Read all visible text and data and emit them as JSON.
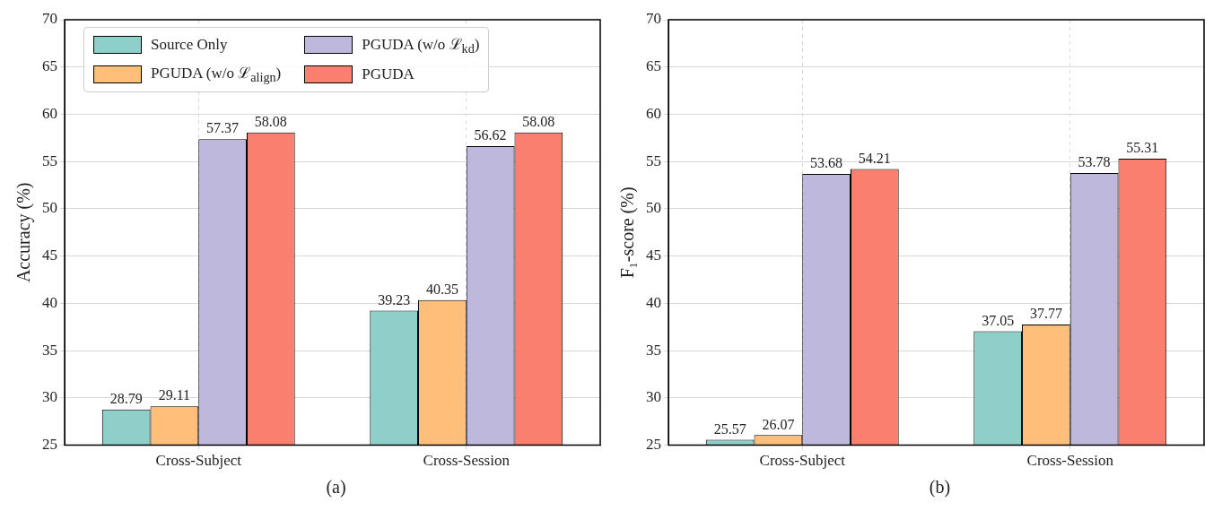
{
  "chart_data": [
    {
      "type": "bar",
      "categories": [
        "Cross-Subject",
        "Cross-Session"
      ],
      "ylabel": "Accuracy (%)",
      "ylim": [
        25,
        70
      ],
      "yticks": [
        25,
        30,
        35,
        40,
        45,
        50,
        55,
        60,
        65,
        70
      ],
      "grid": true,
      "legend": "top left",
      "data_labels": true,
      "annotations": [
        "(a)"
      ],
      "series": [
        {
          "name": "Source Only",
          "color": "#8ecfc9",
          "values": [
            28.79,
            39.23
          ]
        },
        {
          "name": "PGUDA (w/o ℒ$_{align}$)",
          "color": "#ffbe7a",
          "values": [
            29.11,
            40.35
          ]
        },
        {
          "name": "PGUDA (w/o ℒ$_{kd}$)",
          "color": "#beb8dc",
          "values": [
            57.37,
            56.62
          ]
        },
        {
          "name": "PGUDA",
          "color": "#fa7f6f",
          "values": [
            58.08,
            58.08
          ]
        }
      ]
    },
    {
      "type": "bar",
      "categories": [
        "Cross-Subject",
        "Cross-Session"
      ],
      "ylabel": "F₁-score (%)",
      "ylim": [
        25,
        70
      ],
      "yticks": [
        25,
        30,
        35,
        40,
        45,
        50,
        55,
        60,
        65,
        70
      ],
      "grid": true,
      "data_labels": true,
      "annotations": [
        "(b)"
      ],
      "series": [
        {
          "color": "#8ecfc9",
          "values": [
            25.57,
            37.05
          ]
        },
        {
          "color": "#ffbe7a",
          "values": [
            26.07,
            37.77
          ]
        },
        {
          "color": "#beb8dc",
          "values": [
            53.68,
            53.78
          ]
        },
        {
          "color": "#fa7f6f",
          "values": [
            54.21,
            55.31
          ]
        }
      ]
    }
  ]
}
